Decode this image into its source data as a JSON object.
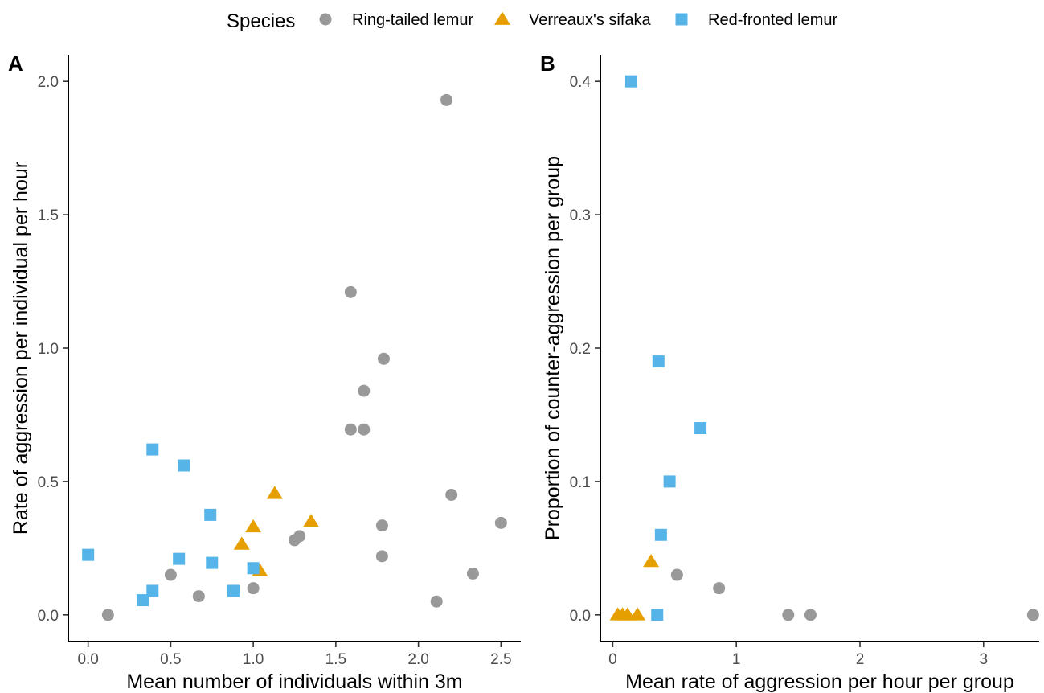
{
  "legend": {
    "title": "Species",
    "entries": [
      {
        "label": "Ring-tailed lemur",
        "shape": "circle",
        "color": "#999999"
      },
      {
        "label": "Verreaux's sifaka",
        "shape": "triangle",
        "color": "#E69F00"
      },
      {
        "label": "Red-fronted lemur",
        "shape": "square",
        "color": "#56B4E9"
      }
    ]
  },
  "chart_data": [
    {
      "panel": "A",
      "type": "scatter",
      "xlabel": "Mean number of individuals within 3m",
      "ylabel": "Rate of aggression per individual per hour",
      "xlim": [
        -0.12,
        2.62
      ],
      "ylim": [
        -0.1,
        2.1
      ],
      "xticks": [
        0.0,
        0.5,
        1.0,
        1.5,
        2.0,
        2.5
      ],
      "xtick_labels": [
        "0.0",
        "0.5",
        "1.0",
        "1.5",
        "2.0",
        "2.5"
      ],
      "yticks": [
        0.0,
        0.5,
        1.0,
        1.5,
        2.0
      ],
      "ytick_labels": [
        "0.0",
        "0.5",
        "1.0",
        "1.5",
        "2.0"
      ],
      "grid": false,
      "series": [
        {
          "name": "Ring-tailed lemur",
          "points": [
            [
              0.12,
              0.0
            ],
            [
              0.5,
              0.15
            ],
            [
              0.67,
              0.07
            ],
            [
              1.0,
              0.1
            ],
            [
              1.25,
              0.28
            ],
            [
              1.28,
              0.295
            ],
            [
              1.59,
              1.21
            ],
            [
              1.59,
              0.695
            ],
            [
              1.67,
              0.84
            ],
            [
              1.67,
              0.695
            ],
            [
              1.79,
              0.96
            ],
            [
              1.78,
              0.335
            ],
            [
              1.78,
              0.22
            ],
            [
              2.17,
              1.93
            ],
            [
              2.2,
              0.45
            ],
            [
              2.11,
              0.05
            ],
            [
              2.33,
              0.155
            ],
            [
              2.5,
              0.345
            ]
          ]
        },
        {
          "name": "Verreaux's sifaka",
          "points": [
            [
              0.93,
              0.265
            ],
            [
              1.0,
              0.33
            ],
            [
              1.04,
              0.165
            ],
            [
              1.13,
              0.455
            ],
            [
              1.35,
              0.35
            ]
          ]
        },
        {
          "name": "Red-fronted lemur",
          "points": [
            [
              0.0,
              0.225
            ],
            [
              0.33,
              0.055
            ],
            [
              0.39,
              0.62
            ],
            [
              0.39,
              0.09
            ],
            [
              0.55,
              0.21
            ],
            [
              0.58,
              0.56
            ],
            [
              0.74,
              0.375
            ],
            [
              0.75,
              0.195
            ],
            [
              0.88,
              0.09
            ],
            [
              1.0,
              0.175
            ]
          ]
        }
      ]
    },
    {
      "panel": "B",
      "type": "scatter",
      "xlabel": "Mean rate of aggression per hour per group",
      "ylabel": "Proportion of counter-aggression per group",
      "xlim": [
        -0.1,
        3.45
      ],
      "ylim": [
        -0.02,
        0.42
      ],
      "xticks": [
        0,
        1,
        2,
        3
      ],
      "xtick_labels": [
        "0",
        "1",
        "2",
        "3"
      ],
      "yticks": [
        0.0,
        0.1,
        0.2,
        0.3,
        0.4
      ],
      "ytick_labels": [
        "0.0",
        "0.1",
        "0.2",
        "0.3",
        "0.4"
      ],
      "grid": false,
      "series": [
        {
          "name": "Ring-tailed lemur",
          "points": [
            [
              0.52,
              0.03
            ],
            [
              0.86,
              0.02
            ],
            [
              1.42,
              0.0
            ],
            [
              1.6,
              0.0
            ],
            [
              3.4,
              0.0
            ]
          ]
        },
        {
          "name": "Verreaux's sifaka",
          "points": [
            [
              0.04,
              0.0
            ],
            [
              0.08,
              0.0
            ],
            [
              0.12,
              0.0
            ],
            [
              0.2,
              0.0
            ],
            [
              0.31,
              0.04
            ]
          ]
        },
        {
          "name": "Red-fronted lemur",
          "points": [
            [
              0.15,
              0.4
            ],
            [
              0.37,
              0.19
            ],
            [
              0.71,
              0.14
            ],
            [
              0.46,
              0.1
            ],
            [
              0.39,
              0.06
            ],
            [
              0.36,
              0.0
            ]
          ]
        }
      ]
    }
  ]
}
